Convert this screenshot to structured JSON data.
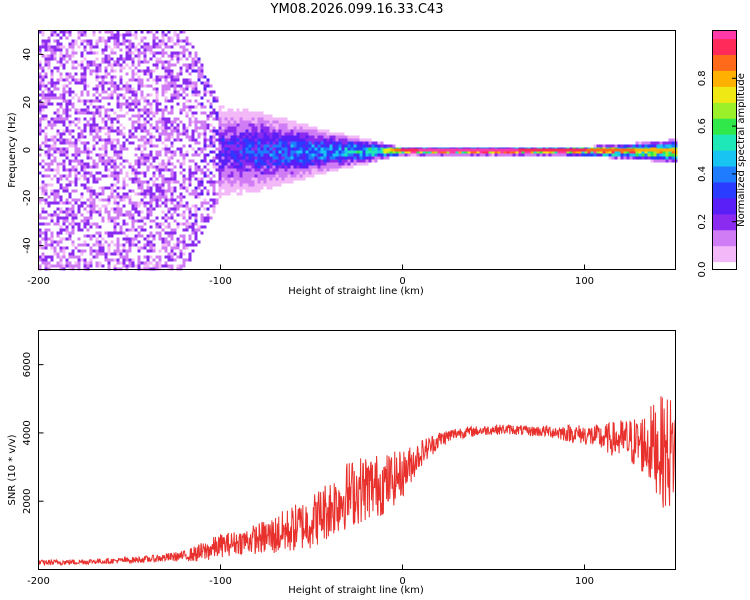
{
  "colors": {
    "snr_line": "#e8302c",
    "background": "#ffffff",
    "spectrum_background": "#ffffff",
    "colormap": [
      "#ffffff",
      "#f2b8f8",
      "#d07cf4",
      "#8b2bf0",
      "#5a1ef6",
      "#2a3cff",
      "#1f7cff",
      "#18c4f2",
      "#1ee7b8",
      "#31e84a",
      "#9bf02a",
      "#f0e814",
      "#ffb000",
      "#ff6a1a",
      "#ff2a5a",
      "#ff3aa8"
    ]
  },
  "chart_data": [
    {
      "type": "heatmap",
      "title": "YM08.2026.099.16.33.C43",
      "xlabel": "Height of straight line (km)",
      "ylabel": "Frequency (Hz)",
      "xlim": [
        -200,
        150
      ],
      "ylim": [
        -50,
        50
      ],
      "xticks": [
        -200,
        -100,
        0,
        100
      ],
      "xtick_labels": [
        "-200",
        "-100",
        "0",
        "100"
      ],
      "yticks": [
        -40,
        -20,
        0,
        20,
        40
      ],
      "ytick_labels": [
        "-40",
        "-20",
        "0",
        "20",
        "40"
      ],
      "colorbar": {
        "label": "Normalized spectral amplitude",
        "range": [
          0,
          1
        ],
        "ticks": [
          0.0,
          0.2,
          0.4,
          0.6,
          0.8
        ],
        "tick_labels": [
          "0.0",
          "0.2",
          "0.4",
          "0.6",
          "0.8"
        ]
      },
      "band_profile": {
        "x": [
          -200,
          -150,
          -120,
          -100,
          -80,
          -60,
          -40,
          -20,
          -10,
          0,
          10,
          20,
          40,
          60,
          80,
          100,
          120,
          140,
          150
        ],
        "spread_hz": [
          50,
          50,
          48,
          18,
          16,
          12,
          8,
          5,
          3,
          1.5,
          1.5,
          1.5,
          1.5,
          1.5,
          1.5,
          2,
          3,
          4,
          5
        ],
        "peak_amplitude": [
          0.22,
          0.22,
          0.22,
          0.3,
          0.38,
          0.42,
          0.48,
          0.56,
          0.7,
          0.95,
          0.97,
          0.97,
          0.97,
          0.97,
          0.95,
          0.9,
          0.85,
          0.8,
          0.8
        ]
      }
    },
    {
      "type": "line",
      "xlabel": "Height of straight line (km)",
      "ylabel": "SNR (10 * v/v)",
      "xlim": [
        -200,
        150
      ],
      "ylim": [
        0,
        7000
      ],
      "xticks": [
        -200,
        -100,
        0,
        100
      ],
      "xtick_labels": [
        "-200",
        "-100",
        "0",
        "100"
      ],
      "yticks": [
        2000,
        4000,
        6000
      ],
      "ytick_labels": [
        "2000",
        "4000",
        "6000"
      ],
      "series": [
        {
          "name": "SNR",
          "x": [
            -200,
            -180,
            -160,
            -140,
            -120,
            -110,
            -100,
            -90,
            -80,
            -70,
            -60,
            -50,
            -40,
            -30,
            -20,
            -10,
            0,
            10,
            20,
            30,
            40,
            50,
            60,
            70,
            80,
            90,
            100,
            110,
            120,
            130,
            140,
            145,
            150
          ],
          "values": [
            200,
            220,
            250,
            300,
            400,
            500,
            700,
            800,
            900,
            1000,
            1200,
            1400,
            1800,
            2200,
            2400,
            2500,
            2800,
            3400,
            3800,
            4000,
            4050,
            4100,
            4100,
            4050,
            4050,
            4000,
            3950,
            3850,
            3800,
            3700,
            3600,
            3400,
            3500
          ],
          "noise_amplitude": [
            80,
            80,
            80,
            100,
            150,
            300,
            350,
            350,
            450,
            600,
            700,
            800,
            900,
            1000,
            1000,
            900,
            700,
            400,
            250,
            180,
            150,
            150,
            150,
            150,
            180,
            250,
            300,
            400,
            600,
            800,
            1400,
            1800,
            1500
          ]
        }
      ]
    }
  ]
}
